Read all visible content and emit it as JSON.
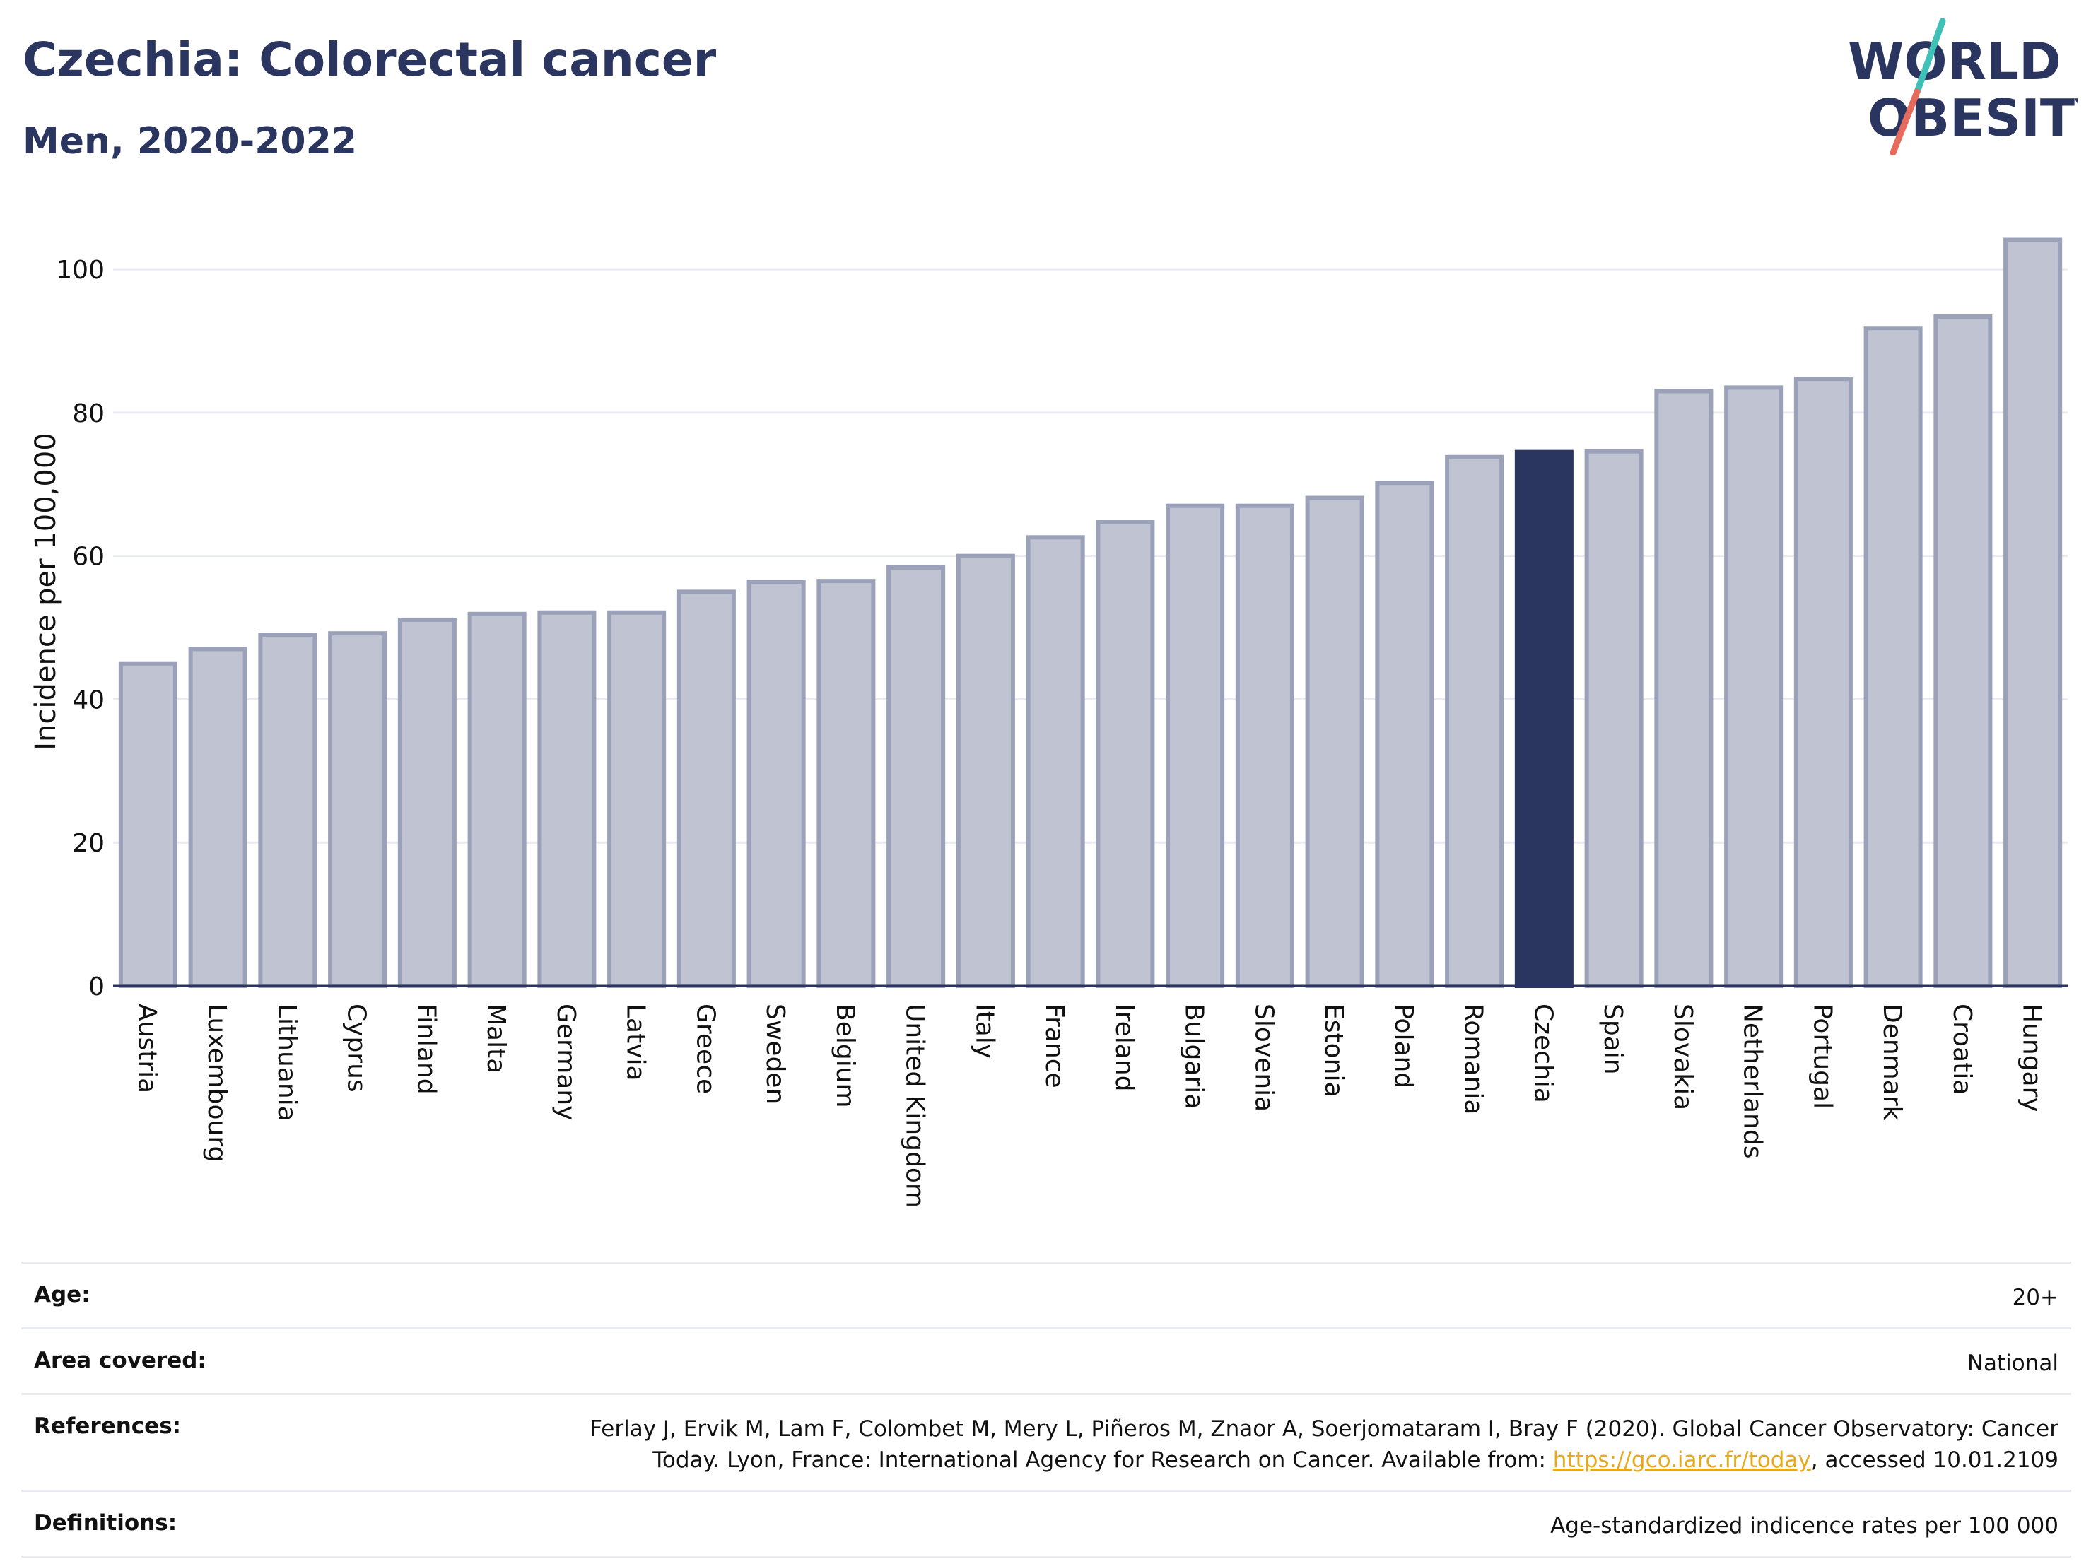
{
  "header": {
    "title": "Czechia: Colorectal cancer",
    "subtitle": "Men, 2020-2022"
  },
  "logo": {
    "line1": "WORLD",
    "line2": "OBESITY",
    "name": "world-obesity-logo"
  },
  "chart_data": {
    "type": "bar",
    "ylabel": "Incidence per 100,000",
    "ylim": [
      0,
      108
    ],
    "yticks": [
      0,
      20,
      40,
      60,
      80,
      100
    ],
    "grid": true,
    "highlight": "Czechia",
    "colors": {
      "bar": "#c0c4d2",
      "bar_edge": "#9ba1b8",
      "highlight": "#2a3560"
    },
    "categories": [
      "Austria",
      "Luxembourg",
      "Lithuania",
      "Cyprus",
      "Finland",
      "Malta",
      "Germany",
      "Latvia",
      "Greece",
      "Sweden",
      "Belgium",
      "United Kingdom",
      "Italy",
      "France",
      "Ireland",
      "Bulgaria",
      "Slovenia",
      "Estonia",
      "Poland",
      "Romania",
      "Czechia",
      "Spain",
      "Slovakia",
      "Netherlands",
      "Portugal",
      "Denmark",
      "Croatia",
      "Hungary"
    ],
    "values": [
      45.0,
      47.0,
      49.0,
      49.2,
      51.1,
      51.9,
      52.1,
      52.1,
      55.0,
      56.4,
      56.5,
      58.4,
      60.0,
      62.6,
      64.7,
      67.0,
      67.0,
      68.1,
      70.2,
      73.8,
      74.5,
      74.6,
      83.0,
      83.5,
      84.7,
      91.8,
      93.4,
      104.1
    ]
  },
  "info": {
    "age_label": "Age:",
    "age_value": "20+",
    "area_label": "Area covered:",
    "area_value": "National",
    "refs_label": "References:",
    "refs_text1": "Ferlay J, Ervik M, Lam F, Colombet M, Mery L, Piñeros M, Znaor A, Soerjomataram I, Bray F (2020). Global Cancer Observatory: Cancer Today. Lyon, France: International Agency for Research on Cancer. Available from: ",
    "refs_link": "https://gco.iarc.fr/today",
    "refs_text2": ", accessed 10.01.2109",
    "defs_label": "Definitions:",
    "defs_value": "Age-standardized indicence rates per 100 000"
  }
}
